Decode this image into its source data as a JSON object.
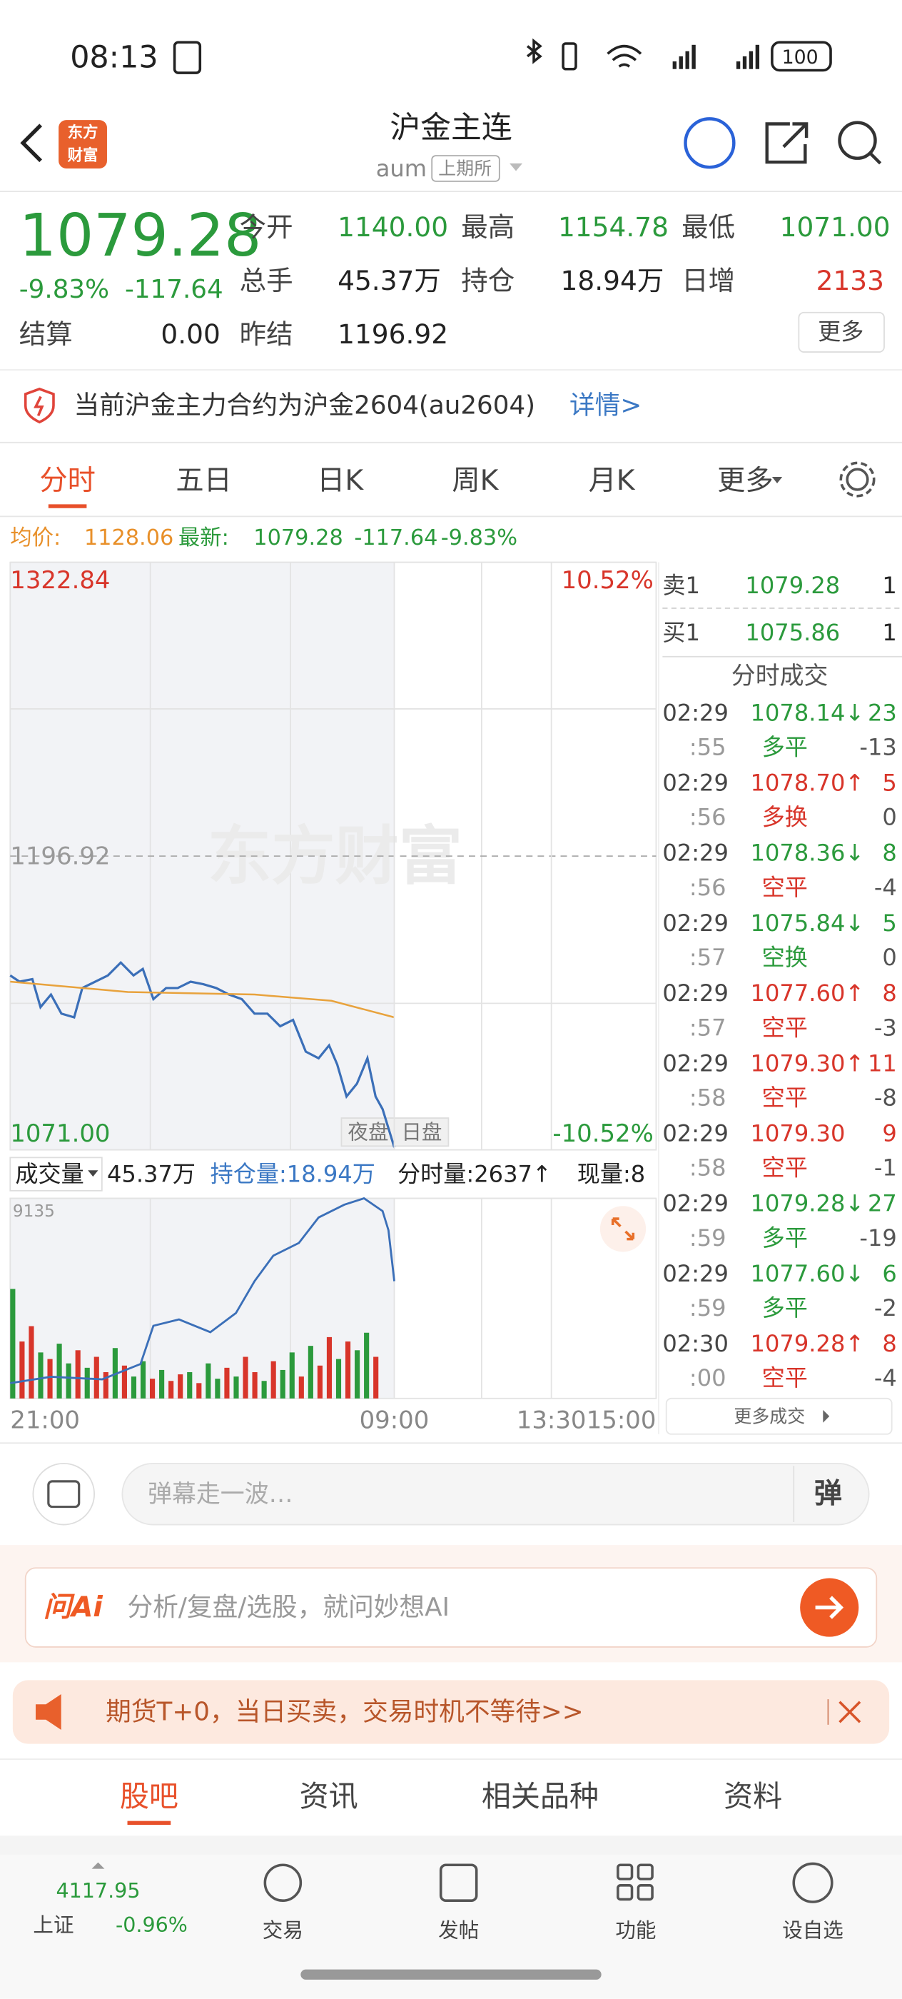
{
  "status_bar": {
    "time": "08:13",
    "battery": "100"
  },
  "header": {
    "logo": [
      "东方",
      "财富"
    ],
    "title": "沪金主连",
    "code": "aum",
    "exchange": "上期所"
  },
  "quote": {
    "price": "1079.28",
    "change_pct": "-9.83%",
    "change": "-117.64",
    "fields": [
      {
        "label": "今开",
        "value": "1140.00"
      },
      {
        "label": "最高",
        "value": "1154.78"
      },
      {
        "label": "最低",
        "value": "1071.00"
      },
      {
        "label": "总手",
        "value": "45.37万"
      },
      {
        "label": "持仓",
        "value": "18.94万"
      },
      {
        "label": "日增",
        "value": "2133"
      },
      {
        "label": "结算",
        "value": "0.00"
      },
      {
        "label": "昨结",
        "value": "1196.92"
      }
    ],
    "more": "更多"
  },
  "notice": {
    "text": "当前沪金主力合约为沪金2604(au2604)",
    "link": "详情>"
  },
  "tabs": [
    "分时",
    "五日",
    "日K",
    "周K",
    "月K",
    "更多"
  ],
  "info_line": {
    "avg_label": "均价:",
    "avg": "1128.06",
    "latest_label": "最新:",
    "latest": "1079.28",
    "change": "-117.64",
    "change_pct": "-9.83%"
  },
  "watermark": "东方财富",
  "chart_data": [
    {
      "type": "line",
      "xlim": [
        0,
        555
      ],
      "ylim": [
        1071,
        1322.84
      ],
      "yticks": [
        1322.84,
        1196.92,
        {
          "value": 1071,
          "label": "1071.00"
        }
      ],
      "y2lim": [
        -10.52,
        10.52
      ],
      "y2ticks": [
        {
          "value": 10.52,
          "label": "10.52%"
        },
        {
          "value": -10.52,
          "label": "-10.52%"
        }
      ],
      "series": [
        {
          "color": "#3b6fb8",
          "x": [
            0,
            8,
            19,
            26,
            35,
            44,
            55,
            62,
            73,
            84,
            95,
            106,
            114,
            123,
            134,
            144,
            155,
            166,
            177,
            188,
            199,
            210,
            221,
            232,
            243,
            254,
            265,
            274,
            281,
            289,
            298,
            307,
            314,
            320,
            325,
            330
          ],
          "values": [
            1145.8,
            1143.1,
            1144.2,
            1132.2,
            1137.6,
            1129.4,
            1127.8,
            1140.4,
            1143.1,
            1145.8,
            1151.3,
            1145.8,
            1148.6,
            1135.6,
            1140.4,
            1140.4,
            1143.1,
            1142.0,
            1140.4,
            1137.6,
            1135.6,
            1129.4,
            1129.4,
            1124.0,
            1126.7,
            1113.1,
            1110.3,
            1115.8,
            1107.6,
            1093.9,
            1099.4,
            1110.3,
            1093.9,
            1088.5,
            1080.3,
            1072.1
          ]
        },
        {
          "color": "#e8a23c",
          "x": [
            0,
            101,
            210,
            276,
            330
          ],
          "values": [
            1143.1,
            1138.7,
            1137.6,
            1134.9,
            1127.8
          ]
        }
      ],
      "annotations": [
        "夜盘",
        "日盘"
      ]
    },
    {
      "type": "bar",
      "title": "成交量",
      "stats": [
        "45.37万",
        "持仓量:18.94万",
        "分时量:2637↑",
        "现量:8"
      ],
      "xlim": [
        0,
        555
      ],
      "xticks": [
        {
          "value": 0,
          "label": "21:00"
        },
        {
          "value": 330,
          "label": "09:00"
        },
        {
          "value": 465,
          "label": "13:30"
        },
        {
          "value": 555,
          "label": "15:00"
        }
      ],
      "ylim": [
        0,
        9135
      ],
      "yticks": [
        9135
      ],
      "x": [
        0,
        8,
        16,
        24,
        32,
        40,
        48,
        56,
        64,
        72,
        80,
        88,
        96,
        104,
        112,
        120,
        128,
        136,
        144,
        152,
        160,
        168,
        176,
        184,
        192,
        200,
        208,
        216,
        224,
        232,
        240,
        248,
        256,
        264,
        272,
        280,
        288,
        296,
        304,
        312
      ],
      "values": [
        5000,
        2600,
        3300,
        2100,
        1800,
        2500,
        1600,
        2200,
        1400,
        1900,
        1200,
        2300,
        1500,
        1000,
        1700,
        900,
        1300,
        800,
        1100,
        1200,
        700,
        1600,
        900,
        1400,
        1000,
        1900,
        1200,
        800,
        1700,
        1300,
        2100,
        1000,
        2400,
        1500,
        2800,
        1800,
        2600,
        2200,
        3000,
        1900
      ],
      "colors": [
        "#2b9a3c",
        "#d8352a",
        "#d8352a",
        "#2b9a3c",
        "#d8352a",
        "#2b9a3c",
        "#2b9a3c",
        "#d8352a",
        "#2b9a3c",
        "#d8352a",
        "#d8352a",
        "#2b9a3c",
        "#d8352a",
        "#2b9a3c",
        "#2b9a3c",
        "#d8352a",
        "#2b9a3c",
        "#d8352a",
        "#d8352a",
        "#2b9a3c",
        "#d8352a",
        "#2b9a3c",
        "#2b9a3c",
        "#d8352a",
        "#2b9a3c",
        "#d8352a",
        "#d8352a",
        "#2b9a3c",
        "#d8352a",
        "#2b9a3c",
        "#2b9a3c",
        "#d8352a",
        "#2b9a3c",
        "#d8352a",
        "#d8352a",
        "#2b9a3c",
        "#d8352a",
        "#2b9a3c",
        "#2b9a3c",
        "#d8352a"
      ],
      "line": {
        "color": "#3b6fb8",
        "x": [
          0,
          35,
          79,
          112,
          123,
          145,
          172,
          194,
          210,
          226,
          248,
          265,
          287,
          304,
          320,
          325,
          330
        ],
        "values": [
          698,
          989,
          873,
          1571,
          3317,
          3608,
          3026,
          3899,
          5354,
          6518,
          7100,
          8264,
          8846,
          9135,
          8555,
          7682,
          5354
        ]
      }
    }
  ],
  "order_book": [
    {
      "label": "卖1",
      "price": "1079.28",
      "qty": "1"
    },
    {
      "label": "买1",
      "price": "1075.86",
      "qty": "1"
    }
  ],
  "trades_title": "分时成交",
  "trades": [
    {
      "time": "02:29",
      "price": "1078.14↓",
      "qty": "23",
      "sub_time": ":55",
      "kind": "多平",
      "oi": "-13",
      "price_color": "#2b9a3c",
      "kind_color": "#2b9a3c"
    },
    {
      "time": "02:29",
      "price": "1078.70↑",
      "qty": "5",
      "sub_time": ":56",
      "kind": "多换",
      "oi": "0",
      "price_color": "#d8352a",
      "kind_color": "#d8352a"
    },
    {
      "time": "02:29",
      "price": "1078.36↓",
      "qty": "8",
      "sub_time": ":56",
      "kind": "空平",
      "oi": "-4",
      "price_color": "#2b9a3c",
      "kind_color": "#d8352a"
    },
    {
      "time": "02:29",
      "price": "1075.84↓",
      "qty": "5",
      "sub_time": ":57",
      "kind": "空换",
      "oi": "0",
      "price_color": "#2b9a3c",
      "kind_color": "#2b9a3c"
    },
    {
      "time": "02:29",
      "price": "1077.60↑",
      "qty": "8",
      "sub_time": ":57",
      "kind": "空平",
      "oi": "-3",
      "price_color": "#d8352a",
      "kind_color": "#d8352a"
    },
    {
      "time": "02:29",
      "price": "1079.30↑",
      "qty": "11",
      "sub_time": ":58",
      "kind": "空平",
      "oi": "-8",
      "price_color": "#d8352a",
      "kind_color": "#d8352a"
    },
    {
      "time": "02:29",
      "price": "1079.30",
      "qty": "9",
      "sub_time": ":58",
      "kind": "空平",
      "oi": "-1",
      "price_color": "#d8352a",
      "kind_color": "#d8352a"
    },
    {
      "time": "02:29",
      "price": "1079.28↓",
      "qty": "27",
      "sub_time": ":59",
      "kind": "多平",
      "oi": "-19",
      "price_color": "#2b9a3c",
      "kind_color": "#2b9a3c"
    },
    {
      "time": "02:29",
      "price": "1077.60↓",
      "qty": "6",
      "sub_time": ":59",
      "kind": "多平",
      "oi": "-2",
      "price_color": "#2b9a3c",
      "kind_color": "#2b9a3c"
    },
    {
      "time": "02:30",
      "price": "1079.28↑",
      "qty": "8",
      "sub_time": ":00",
      "kind": "空平",
      "oi": "-4",
      "price_color": "#d8352a",
      "kind_color": "#d8352a"
    }
  ],
  "more_trades": "更多成交",
  "comment": {
    "placeholder": "弹幕走一波…",
    "button": "弹"
  },
  "ai_bar": {
    "brand": "问Ai",
    "text": "分析/复盘/选股，就问妙想AI"
  },
  "banner": {
    "text": "期货T+0，当日买卖，交易时机不等待>>"
  },
  "bottom_tabs": [
    "股吧",
    "资讯",
    "相关品种",
    "资料"
  ],
  "nav": {
    "index_value": "4117.95",
    "index_name": "上证",
    "index_change": "-0.96%",
    "items": [
      "交易",
      "发帖",
      "功能",
      "设自选"
    ]
  }
}
